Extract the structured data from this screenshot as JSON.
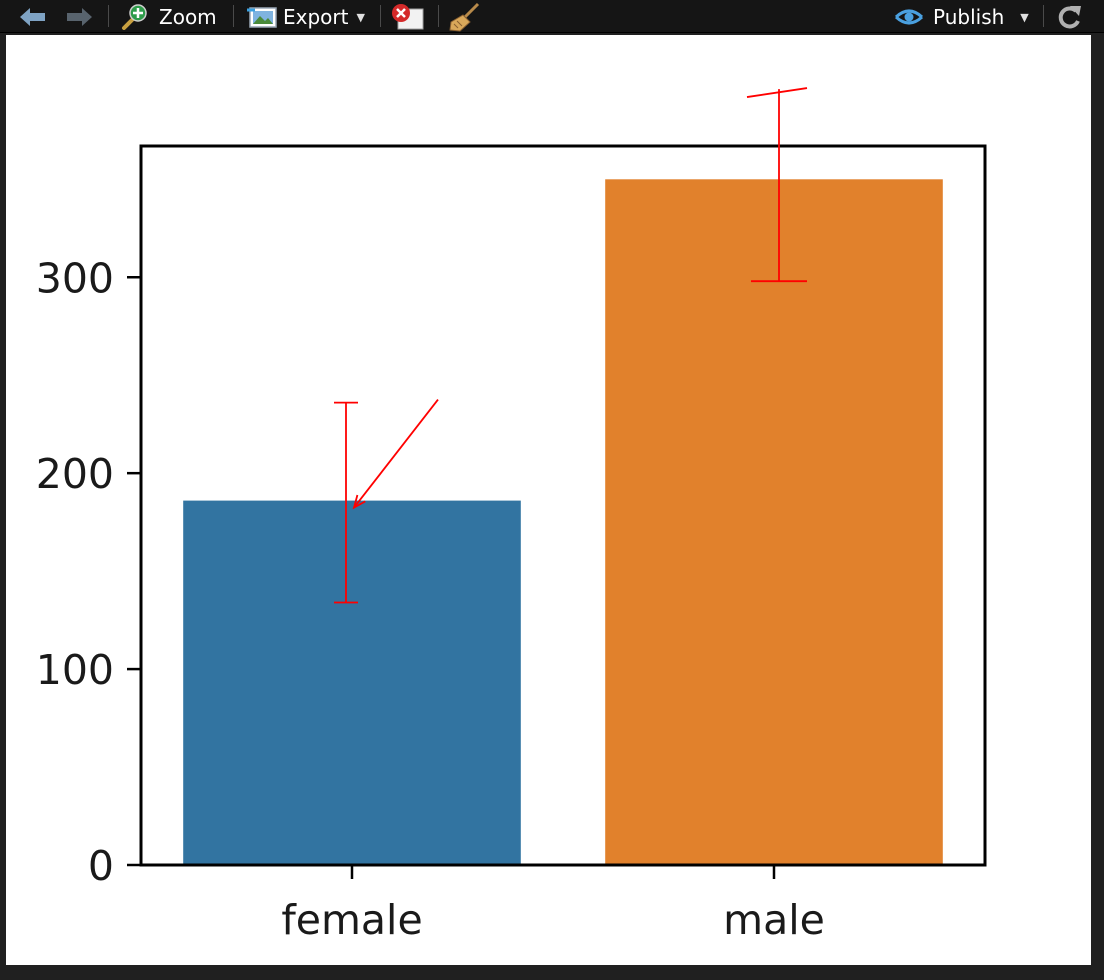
{
  "toolbar": {
    "back_icon": "arrow-left-icon",
    "forward_icon": "arrow-right-icon",
    "zoom_label": "Zoom",
    "zoom_icon": "magnifier-plus-icon",
    "export_label": "Export",
    "export_icon": "image-export-icon",
    "remove_icon": "remove-plot-icon",
    "clear_icon": "broom-icon",
    "publish_label": "Publish",
    "publish_icon": "publish-eye-icon",
    "refresh_icon": "refresh-icon"
  },
  "colors": {
    "female_bar": "#3274a1",
    "male_bar": "#e1812c",
    "annotation": "#ff0000",
    "axes": "#000000"
  },
  "chart_data": {
    "type": "bar",
    "categories": [
      "female",
      "male"
    ],
    "values": [
      186,
      350
    ],
    "error_bars": [
      {
        "category": "female",
        "low": 134,
        "high": 236
      },
      {
        "category": "male",
        "low": 298,
        "high": 393
      }
    ],
    "ylim": [
      0,
      367
    ],
    "yticks": [
      0,
      100,
      200,
      300
    ],
    "xlabel": "",
    "ylabel": "",
    "title": "",
    "grid": false,
    "annotation": "red arrow pointing to the top of the female bar"
  }
}
